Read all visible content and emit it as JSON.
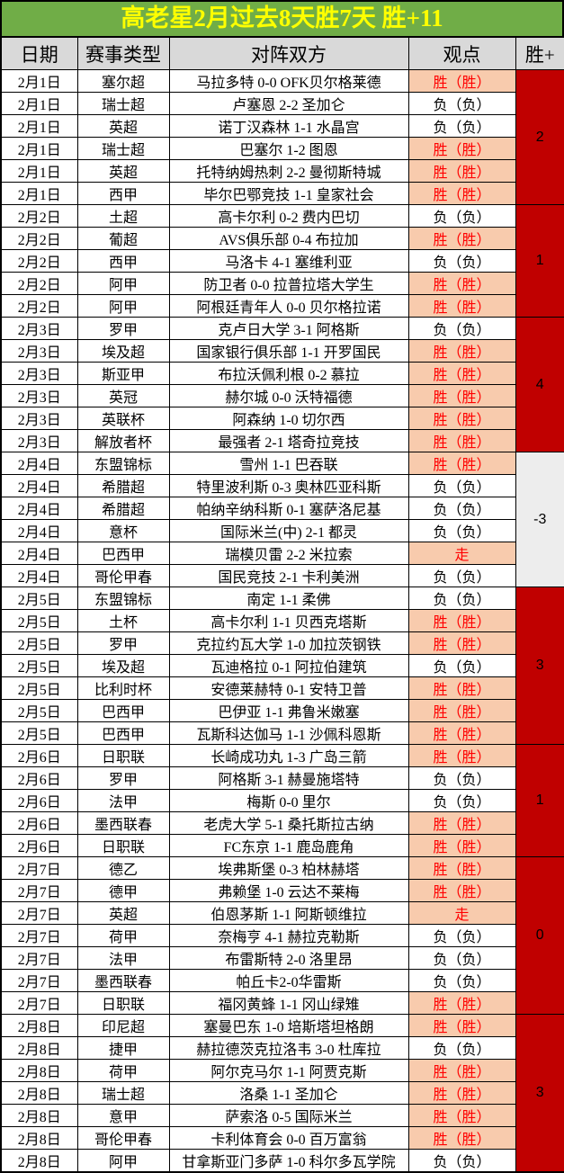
{
  "title": "高老星2月过去8天胜7天 胜+11",
  "columns": [
    "日期",
    "赛事类型",
    "对阵双方",
    "观点",
    "胜+"
  ],
  "colors": {
    "title_bg": "#70AD47",
    "title_text": "#FFFF00",
    "header_bg": "#D9D9D9",
    "win_highlight_bg": "#F8CBAD",
    "win_highlight_text": "#FF0000",
    "winplus_bg": "#C00000",
    "winplus_negative_bg": "#EDEDED",
    "border": "#000000"
  },
  "groups": [
    {
      "date": "2月1日",
      "win_plus": "2",
      "matches": [
        {
          "league": "塞尔超",
          "match": "马拉多特 0-0 OFK贝尔格莱德",
          "view": "胜（胜）",
          "hit": true
        },
        {
          "league": "瑞士超",
          "match": "卢塞恩 2-2 圣加仑",
          "view": "负（负）",
          "hit": false
        },
        {
          "league": "英超",
          "match": "诺丁汉森林 1-1 水晶宫",
          "view": "负（负）",
          "hit": false
        },
        {
          "league": "瑞士超",
          "match": "巴塞尔 1-2 图恩",
          "view": "胜（胜）",
          "hit": true
        },
        {
          "league": "英超",
          "match": "托特纳姆热刺 2-2 曼彻斯特城",
          "view": "胜（胜）",
          "hit": true
        },
        {
          "league": "西甲",
          "match": "毕尔巴鄂竞技 1-1 皇家社会",
          "view": "胜（胜）",
          "hit": true
        }
      ]
    },
    {
      "date": "2月2日",
      "win_plus": "1",
      "matches": [
        {
          "league": "土超",
          "match": "高卡尔利 0-2 费内巴切",
          "view": "负（负）",
          "hit": false
        },
        {
          "league": "葡超",
          "match": "AVS俱乐部 0-4 布拉加",
          "view": "胜（胜）",
          "hit": true
        },
        {
          "league": "西甲",
          "match": "马洛卡 4-1 塞维利亚",
          "view": "负（负）",
          "hit": false
        },
        {
          "league": "阿甲",
          "match": "防卫者 0-0 拉普拉塔大学生",
          "view": "胜（胜）",
          "hit": true
        },
        {
          "league": "阿甲",
          "match": "阿根廷青年人 0-0 贝尔格拉诺",
          "view": "胜（胜）",
          "hit": true
        }
      ]
    },
    {
      "date": "2月3日",
      "win_plus": "4",
      "matches": [
        {
          "league": "罗甲",
          "match": "克卢日大学 3-1 阿格斯",
          "view": "负（负）",
          "hit": false
        },
        {
          "league": "埃及超",
          "match": "国家银行俱乐部 1-1 开罗国民",
          "view": "胜（胜）",
          "hit": true
        },
        {
          "league": "斯亚甲",
          "match": "布拉沃佩利根 0-2 慕拉",
          "view": "胜（胜）",
          "hit": true
        },
        {
          "league": "英冠",
          "match": "赫尔城 0-0 沃特福德",
          "view": "胜（胜）",
          "hit": true
        },
        {
          "league": "英联杯",
          "match": "阿森纳 1-0 切尔西",
          "view": "胜（胜）",
          "hit": true
        },
        {
          "league": "解放者杯",
          "match": "最强者 2-1 塔奇拉竞技",
          "view": "胜（胜）",
          "hit": true
        }
      ]
    },
    {
      "date": "2月4日",
      "win_plus": "-3",
      "matches": [
        {
          "league": "东盟锦标",
          "match": "雪州 1-1 巴吞联",
          "view": "胜（胜）",
          "hit": true
        },
        {
          "league": "希腊超",
          "match": "特里波利斯 0-3 奥林匹亚科斯",
          "view": "负（负）",
          "hit": false
        },
        {
          "league": "希腊超",
          "match": "帕纳辛纳科斯 0-1 塞萨洛尼基",
          "view": "负（负）",
          "hit": false
        },
        {
          "league": "意杯",
          "match": "国际米兰(中) 2-1 都灵",
          "view": "负（负）",
          "hit": false
        },
        {
          "league": "巴西甲",
          "match": "瑞模贝雷 2-2 米拉索",
          "view": "走",
          "hit": true
        },
        {
          "league": "哥伦甲春",
          "match": "国民竞技 2-1 卡利美洲",
          "view": "负（负）",
          "hit": false
        }
      ]
    },
    {
      "date": "2月5日",
      "win_plus": "3",
      "matches": [
        {
          "league": "东盟锦标",
          "match": "南定 1-1 柔佛",
          "view": "负（负）",
          "hit": false
        },
        {
          "league": "土杯",
          "match": "高卡尔利 1-1 贝西克塔斯",
          "view": "胜（胜）",
          "hit": true
        },
        {
          "league": "罗甲",
          "match": "克拉约瓦大学 1-0 加拉茨钢铁",
          "view": "胜（胜）",
          "hit": true
        },
        {
          "league": "埃及超",
          "match": "瓦迪格拉 0-1 阿拉伯建筑",
          "view": "负（负）",
          "hit": false
        },
        {
          "league": "比利时杯",
          "match": "安德莱赫特 0-1 安特卫普",
          "view": "胜（胜）",
          "hit": true
        },
        {
          "league": "巴西甲",
          "match": "巴伊亚 1-1 弗鲁米嫩塞",
          "view": "胜（胜）",
          "hit": true
        },
        {
          "league": "巴西甲",
          "match": "瓦斯科达伽马 1-1 沙佩科恩斯",
          "view": "胜（胜）",
          "hit": true
        }
      ]
    },
    {
      "date": "2月6日",
      "win_plus": "1",
      "matches": [
        {
          "league": "日职联",
          "match": "长崎成功丸 1-3 广岛三箭",
          "view": "胜（胜）",
          "hit": true
        },
        {
          "league": "罗甲",
          "match": "阿格斯 3-1 赫曼施塔特",
          "view": "负（负）",
          "hit": false
        },
        {
          "league": "法甲",
          "match": "梅斯 0-0 里尔",
          "view": "负（负）",
          "hit": false
        },
        {
          "league": "墨西联春",
          "match": "老虎大学 5-1 桑托斯拉古纳",
          "view": "胜（胜）",
          "hit": true
        },
        {
          "league": "日职联",
          "match": "FC东京 1-1 鹿岛鹿角",
          "view": "胜（胜）",
          "hit": true
        }
      ]
    },
    {
      "date": "2月7日",
      "win_plus": "0",
      "matches": [
        {
          "league": "德乙",
          "match": "埃弗斯堡 0-3 柏林赫塔",
          "view": "胜（胜）",
          "hit": true
        },
        {
          "league": "德甲",
          "match": "弗赖堡 1-0 云达不莱梅",
          "view": "胜（胜）",
          "hit": true
        },
        {
          "league": "英超",
          "match": "伯恩茅斯 1-1 阿斯顿维拉",
          "view": "走",
          "hit": true
        },
        {
          "league": "荷甲",
          "match": "奈梅亨 4-1 赫拉克勒斯",
          "view": "负（负）",
          "hit": false
        },
        {
          "league": "法甲",
          "match": "布雷斯特 2-0 洛里昂",
          "view": "负（负）",
          "hit": false
        },
        {
          "league": "墨西联春",
          "match": "帕丘卡2-0华雷斯",
          "view": "负（负）",
          "hit": false
        },
        {
          "league": "日职联",
          "match": "福冈黄蜂 1-1 冈山绿雉",
          "view": "胜（胜）",
          "hit": true
        }
      ]
    },
    {
      "date": "2月8日",
      "win_plus": "3",
      "matches": [
        {
          "league": "印尼超",
          "match": "塞曼巴东 1-0 培斯塔坦格朗",
          "view": "胜（胜）",
          "hit": true
        },
        {
          "league": "捷甲",
          "match": "赫拉德茨克拉洛韦 3-0 杜库拉",
          "view": "负（负）",
          "hit": false
        },
        {
          "league": "荷甲",
          "match": "阿尔克马尔 1-1 阿贾克斯",
          "view": "胜（胜）",
          "hit": true
        },
        {
          "league": "瑞士超",
          "match": "洛桑 1-1 圣加仑",
          "view": "胜（胜）",
          "hit": true
        },
        {
          "league": "意甲",
          "match": "萨索洛 0-5 国际米兰",
          "view": "胜（胜）",
          "hit": true
        },
        {
          "league": "哥伦甲春",
          "match": "卡利体育会 0-0 百万富翁",
          "view": "胜（胜）",
          "hit": true
        },
        {
          "league": "阿甲",
          "match": "甘拿斯亚门多萨 1-0 科尔多瓦学院",
          "view": "负（负）",
          "hit": false
        }
      ]
    }
  ]
}
